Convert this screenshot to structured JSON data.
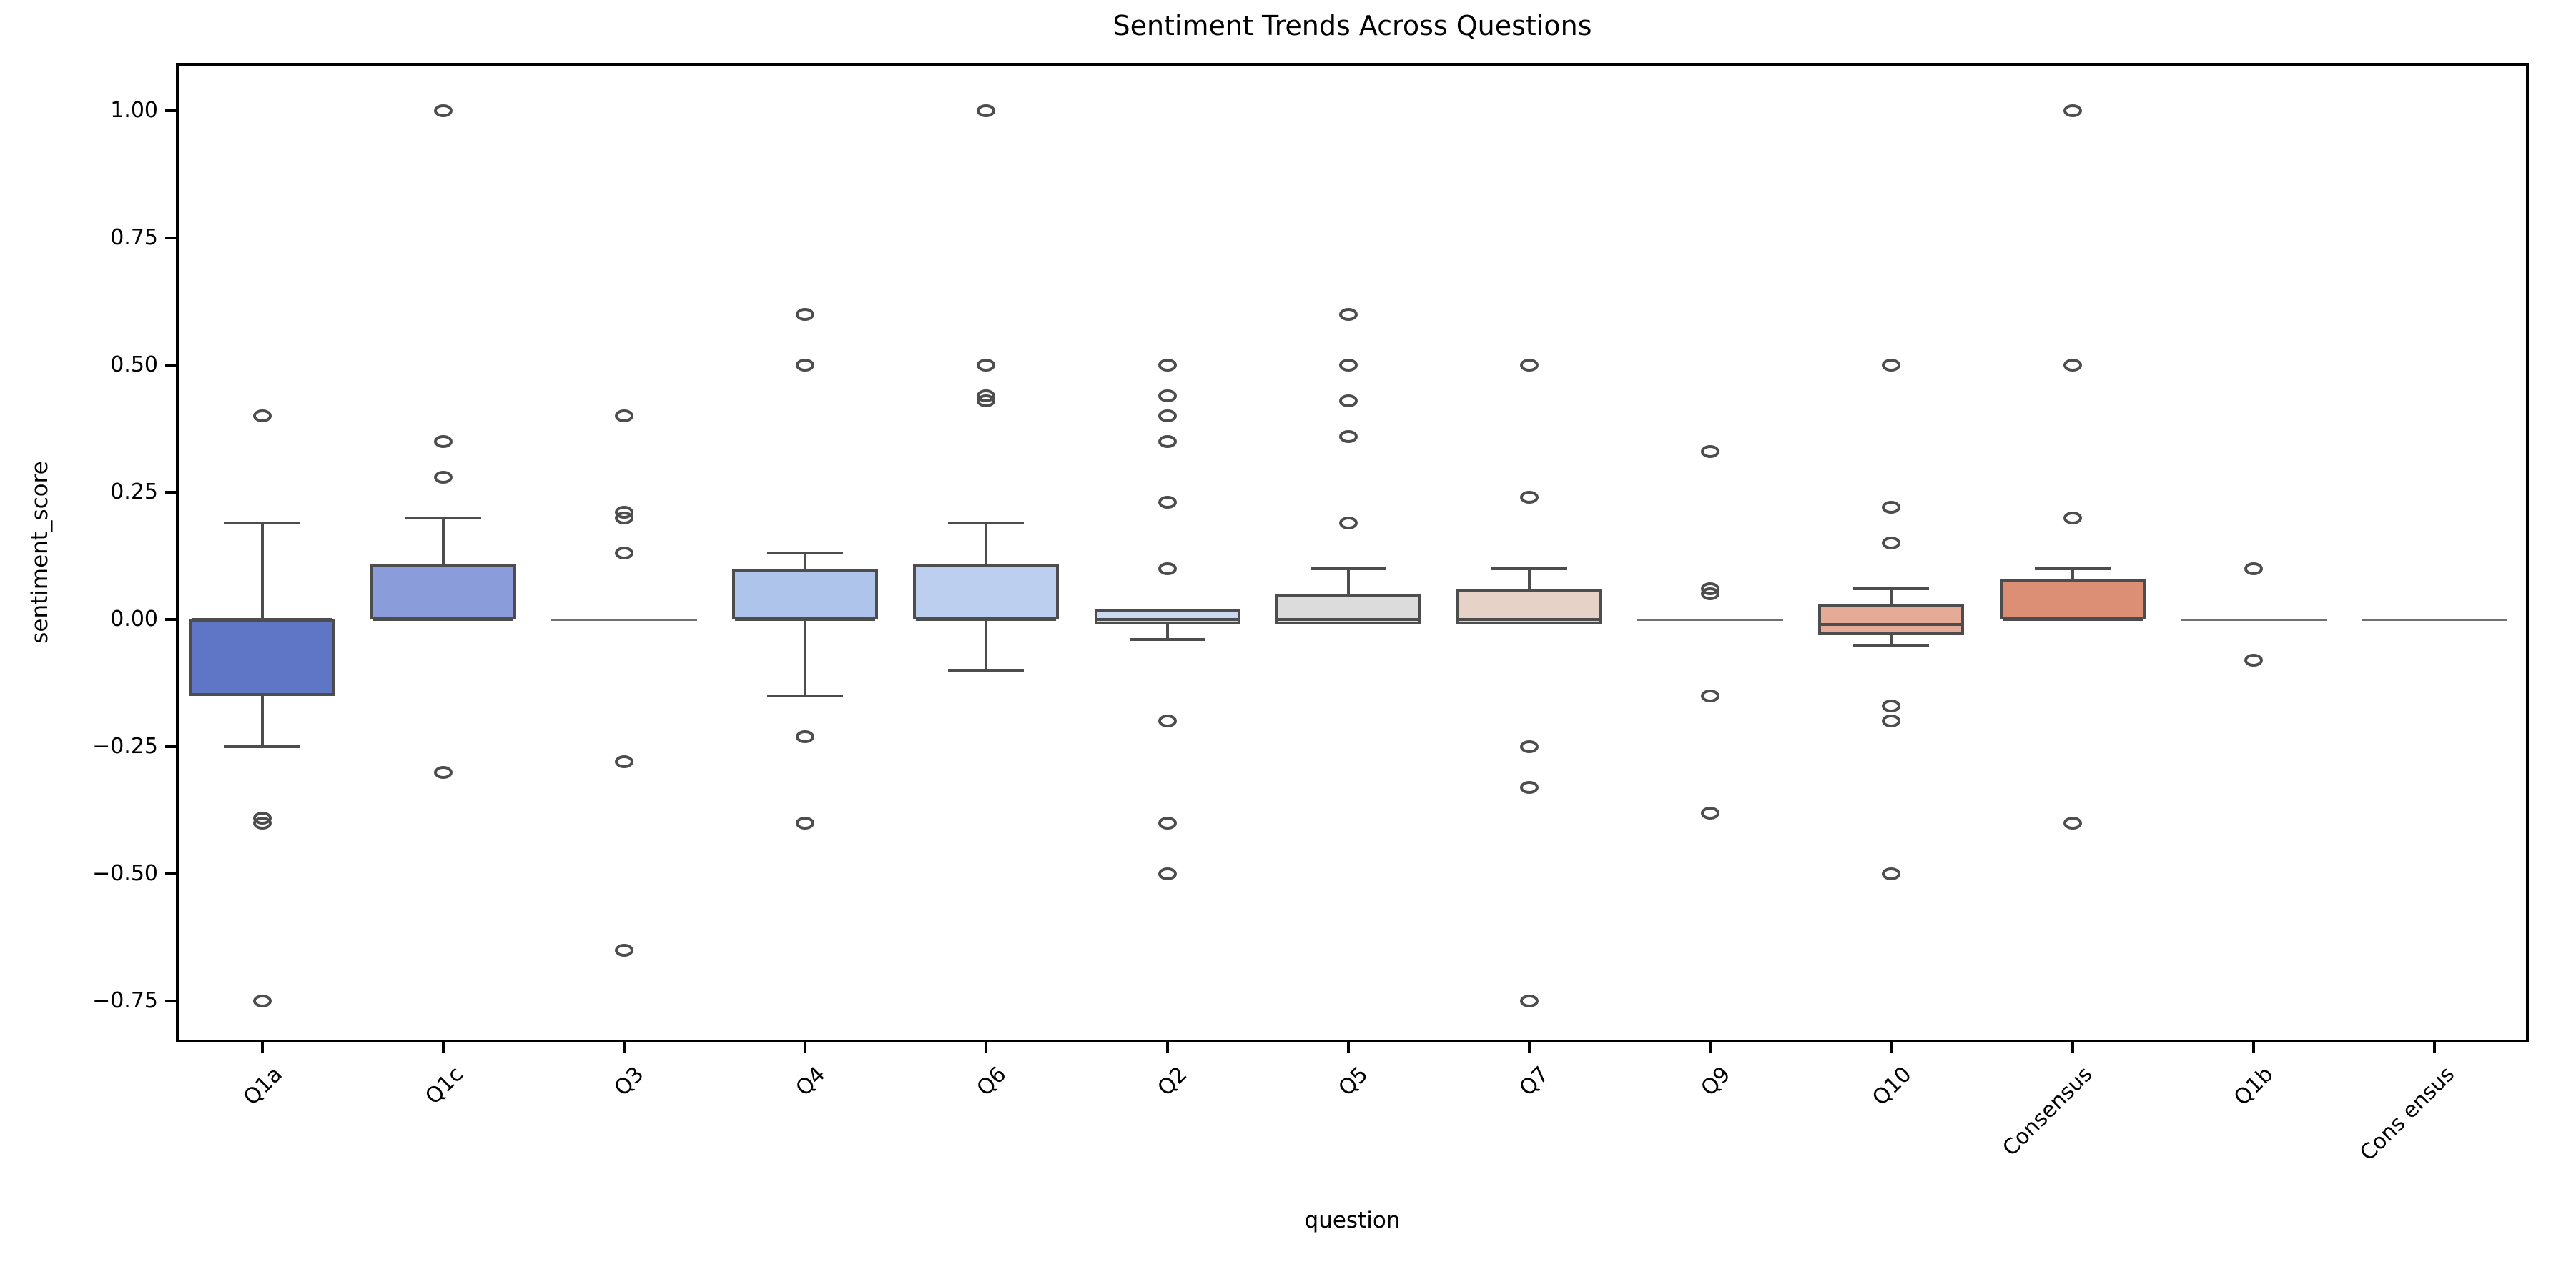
{
  "page_title": "Sentiment Trends Across Questions",
  "chart_data": {
    "type": "box",
    "title": "Sentiment Trends Across Questions",
    "xlabel": "question",
    "ylabel": "sentiment_score",
    "ylim": [
      -0.84,
      1.09
    ],
    "grid": false,
    "legend": "none",
    "y_ticks": [
      1.0,
      0.75,
      0.5,
      0.25,
      0.0,
      -0.25,
      -0.5,
      -0.75
    ],
    "y_tick_labels": [
      "1.00",
      "0.75",
      "0.50",
      "0.25",
      "0.00",
      "−0.25",
      "−0.50",
      "−0.75"
    ],
    "categories": [
      "Q1a",
      "Q1c",
      "Q3",
      "Q4",
      "Q6",
      "Q2",
      "Q5",
      "Q7",
      "Q9",
      "Q10",
      "Consensus",
      "Q1b",
      "Cons ensus"
    ],
    "series": [
      {
        "name": "Q1a",
        "whisker_low": -0.25,
        "q1": -0.15,
        "median": 0.0,
        "q3": 0.0,
        "whisker_high": 0.19,
        "outliers": [
          0.4,
          -0.39,
          -0.4,
          -0.75
        ],
        "color": "#5f76c7"
      },
      {
        "name": "Q1c",
        "whisker_low": 0.0,
        "q1": 0.0,
        "median": 0.0,
        "q3": 0.11,
        "whisker_high": 0.2,
        "outliers": [
          1.0,
          0.35,
          0.28,
          -0.3
        ],
        "color": "#8a9cda"
      },
      {
        "name": "Q3",
        "whisker_low": 0.0,
        "q1": 0.0,
        "median": 0.0,
        "q3": 0.0,
        "whisker_high": 0.0,
        "outliers": [
          0.4,
          0.21,
          0.2,
          0.13,
          -0.28,
          -0.65
        ],
        "color": "#9fb3e3"
      },
      {
        "name": "Q4",
        "whisker_low": -0.15,
        "q1": 0.0,
        "median": 0.0,
        "q3": 0.1,
        "whisker_high": 0.13,
        "outliers": [
          0.6,
          0.5,
          -0.23,
          -0.4
        ],
        "color": "#aec4ea"
      },
      {
        "name": "Q6",
        "whisker_low": -0.1,
        "q1": 0.0,
        "median": 0.0,
        "q3": 0.11,
        "whisker_high": 0.19,
        "outliers": [
          1.0,
          0.5,
          0.44,
          0.43
        ],
        "color": "#bccfee"
      },
      {
        "name": "Q2",
        "whisker_low": -0.04,
        "q1": -0.01,
        "median": 0.0,
        "q3": 0.02,
        "whisker_high": 0.02,
        "outliers": [
          0.5,
          0.44,
          0.4,
          0.35,
          0.23,
          0.1,
          -0.2,
          -0.4,
          -0.5
        ],
        "color": "#ccdaf1"
      },
      {
        "name": "Q5",
        "whisker_low": -0.01,
        "q1": -0.01,
        "median": 0.0,
        "q3": 0.05,
        "whisker_high": 0.1,
        "outliers": [
          0.6,
          0.5,
          0.43,
          0.36,
          0.19
        ],
        "color": "#dcdcdc"
      },
      {
        "name": "Q7",
        "whisker_low": -0.01,
        "q1": -0.01,
        "median": 0.0,
        "q3": 0.06,
        "whisker_high": 0.1,
        "outliers": [
          0.5,
          0.24,
          -0.25,
          -0.33,
          -0.75
        ],
        "color": "#e7d2c7"
      },
      {
        "name": "Q9",
        "whisker_low": 0.0,
        "q1": 0.0,
        "median": 0.0,
        "q3": 0.0,
        "whisker_high": 0.0,
        "outliers": [
          0.33,
          0.06,
          0.05,
          -0.15,
          -0.38
        ],
        "color": "#eec3ae"
      },
      {
        "name": "Q10",
        "whisker_low": -0.05,
        "q1": -0.03,
        "median": -0.01,
        "q3": 0.03,
        "whisker_high": 0.06,
        "outliers": [
          0.5,
          0.22,
          0.15,
          -0.17,
          -0.2,
          -0.5
        ],
        "color": "#e6ab96"
      },
      {
        "name": "Consensus",
        "whisker_low": 0.0,
        "q1": 0.0,
        "median": 0.0,
        "q3": 0.08,
        "whisker_high": 0.1,
        "outliers": [
          1.0,
          0.5,
          0.2,
          -0.4
        ],
        "color": "#dd8f75"
      },
      {
        "name": "Q1b",
        "whisker_low": 0.0,
        "q1": 0.0,
        "median": 0.0,
        "q3": 0.0,
        "whisker_high": 0.0,
        "outliers": [
          0.1,
          -0.08
        ],
        "color": "#d3745f"
      },
      {
        "name": "Cons ensus",
        "whisker_low": 0.0,
        "q1": 0.0,
        "median": 0.0,
        "q3": 0.0,
        "whisker_high": 0.0,
        "outliers": [],
        "color": "#c65a4f"
      }
    ],
    "style": {
      "box_edge_color": "#4d4d4d",
      "flier_edge_color": "#4d4d4d",
      "degenerate_line_color": "#707070",
      "spine_color": "#000000",
      "text_color": "#000000",
      "background": "#ffffff"
    }
  }
}
